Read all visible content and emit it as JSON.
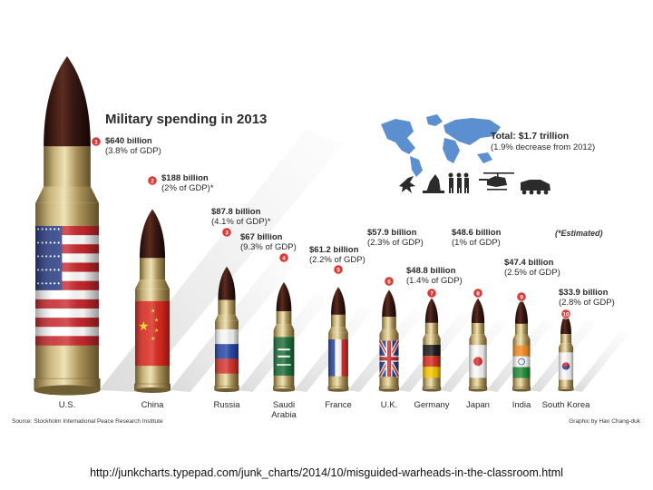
{
  "chart_data": {
    "type": "bar",
    "title": "Military spending in 2013",
    "total_label": "Total: $1.7 trillion",
    "total_note": "(1.9% decrease from 2012)",
    "estimated_note": "(*Estimated)",
    "source": "Source: Stockholm International Peace Research Institute",
    "credit": "Graphic by Han Chang-duk",
    "categories": [
      "U.S.",
      "China",
      "Russia",
      "Saudi Arabia",
      "France",
      "U.K.",
      "Germany",
      "Japan",
      "India",
      "South Korea"
    ],
    "values": [
      640,
      188,
      87.8,
      67,
      61.2,
      57.9,
      48.8,
      48.6,
      47.4,
      33.9
    ],
    "unit": "billion USD",
    "entries": [
      {
        "rank": "1",
        "country": "U.S.",
        "amount": "$640 billion",
        "gdp": "(3.8% of GDP)",
        "value": 640
      },
      {
        "rank": "2",
        "country": "China",
        "amount": "$188 billion",
        "gdp": "(2% of GDP)*",
        "value": 188
      },
      {
        "rank": "3",
        "country": "Russia",
        "amount": "$87.8 billion",
        "gdp": "(4.1% of GDP)*",
        "value": 87.8
      },
      {
        "rank": "4",
        "country": "Saudi Arabia",
        "amount": "$67 billion",
        "gdp": "(9.3% of GDP)",
        "value": 67
      },
      {
        "rank": "5",
        "country": "France",
        "amount": "$61.2 billion",
        "gdp": "(2.2% of GDP)",
        "value": 61.2
      },
      {
        "rank": "6",
        "country": "U.K.",
        "amount": "$57.9 billion",
        "gdp": "(2.3% of GDP)",
        "value": 57.9
      },
      {
        "rank": "7",
        "country": "Germany",
        "amount": "$48.8 billion",
        "gdp": "(1.4% of GDP)",
        "value": 48.8
      },
      {
        "rank": "8",
        "country": "Japan",
        "amount": "$48.6 billion",
        "gdp": "(1% of GDP)",
        "value": 48.6
      },
      {
        "rank": "9",
        "country": "India",
        "amount": "$47.4 billion",
        "gdp": "(2.5% of GDP)",
        "value": 47.4
      },
      {
        "rank": "10",
        "country": "South Korea",
        "amount": "$33.9 billion",
        "gdp": "(2.8% of GDP)",
        "value": 33.9
      }
    ],
    "colors": {
      "brass": "#b9a064",
      "warhead": "#3a1a14",
      "badge": "#d93a35",
      "map": "#5b8fcf",
      "text": "#2a2a2a"
    }
  },
  "url_text": "http://junkcharts.typepad.com/junk_charts/2014/10/misguided-warheads-in-the-classroom.html"
}
